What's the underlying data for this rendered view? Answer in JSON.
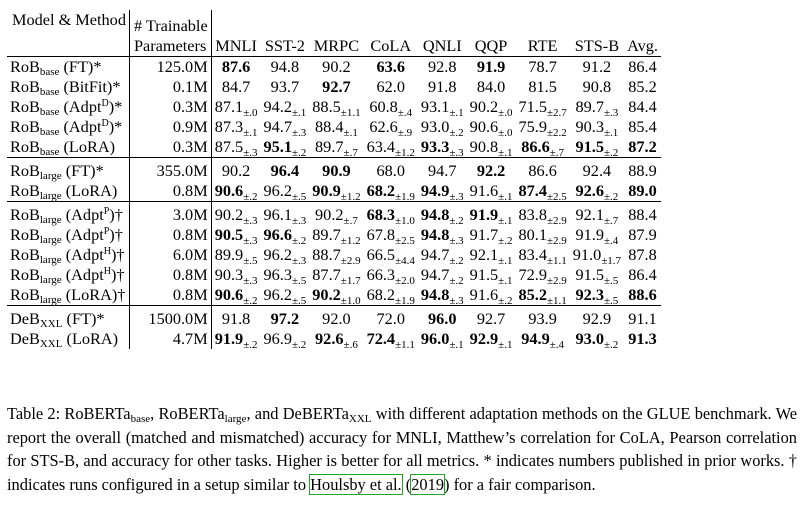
{
  "table": {
    "header": {
      "model_method": "Model & Method",
      "params_line1": "# Trainable",
      "params_line2": "Parameters",
      "tasks": [
        "MNLI",
        "SST-2",
        "MRPC",
        "CoLA",
        "QNLI",
        "QQP",
        "RTE",
        "STS-B",
        "Avg."
      ]
    },
    "groups": [
      {
        "rows": [
          {
            "base": "RoB",
            "sub": "base",
            "method": "(FT)",
            "sup": "",
            "mark": "*",
            "params": "125.0M",
            "cells": [
              {
                "v": "87.6",
                "b": true,
                "pm": ""
              },
              {
                "v": "94.8",
                "b": false,
                "pm": ""
              },
              {
                "v": "90.2",
                "b": false,
                "pm": ""
              },
              {
                "v": "63.6",
                "b": true,
                "pm": ""
              },
              {
                "v": "92.8",
                "b": false,
                "pm": ""
              },
              {
                "v": "91.9",
                "b": true,
                "pm": ""
              },
              {
                "v": "78.7",
                "b": false,
                "pm": ""
              },
              {
                "v": "91.2",
                "b": false,
                "pm": ""
              },
              {
                "v": "86.4",
                "b": false,
                "pm": ""
              }
            ]
          },
          {
            "base": "RoB",
            "sub": "base",
            "method": "(BitFit)",
            "sup": "",
            "mark": "*",
            "params": "0.1M",
            "cells": [
              {
                "v": "84.7",
                "b": false,
                "pm": ""
              },
              {
                "v": "93.7",
                "b": false,
                "pm": ""
              },
              {
                "v": "92.7",
                "b": true,
                "pm": ""
              },
              {
                "v": "62.0",
                "b": false,
                "pm": ""
              },
              {
                "v": "91.8",
                "b": false,
                "pm": ""
              },
              {
                "v": "84.0",
                "b": false,
                "pm": ""
              },
              {
                "v": "81.5",
                "b": false,
                "pm": ""
              },
              {
                "v": "90.8",
                "b": false,
                "pm": ""
              },
              {
                "v": "85.2",
                "b": false,
                "pm": ""
              }
            ]
          },
          {
            "base": "RoB",
            "sub": "base",
            "method": "(Adpt",
            "sup": "D",
            "mark": ")*",
            "params": "0.3M",
            "cells": [
              {
                "v": "87.1",
                "b": false,
                "pm": "±.0"
              },
              {
                "v": "94.2",
                "b": false,
                "pm": "±.1"
              },
              {
                "v": "88.5",
                "b": false,
                "pm": "±1.1"
              },
              {
                "v": "60.8",
                "b": false,
                "pm": "±.4"
              },
              {
                "v": "93.1",
                "b": false,
                "pm": "±.1"
              },
              {
                "v": "90.2",
                "b": false,
                "pm": "±.0"
              },
              {
                "v": "71.5",
                "b": false,
                "pm": "±2.7"
              },
              {
                "v": "89.7",
                "b": false,
                "pm": "±.3"
              },
              {
                "v": "84.4",
                "b": false,
                "pm": ""
              }
            ]
          },
          {
            "base": "RoB",
            "sub": "base",
            "method": "(Adpt",
            "sup": "D",
            "mark": ")*",
            "params": "0.9M",
            "cells": [
              {
                "v": "87.3",
                "b": false,
                "pm": "±.1"
              },
              {
                "v": "94.7",
                "b": false,
                "pm": "±.3"
              },
              {
                "v": "88.4",
                "b": false,
                "pm": "±.1"
              },
              {
                "v": "62.6",
                "b": false,
                "pm": "±.9"
              },
              {
                "v": "93.0",
                "b": false,
                "pm": "±.2"
              },
              {
                "v": "90.6",
                "b": false,
                "pm": "±.0"
              },
              {
                "v": "75.9",
                "b": false,
                "pm": "±2.2"
              },
              {
                "v": "90.3",
                "b": false,
                "pm": "±.1"
              },
              {
                "v": "85.4",
                "b": false,
                "pm": ""
              }
            ]
          },
          {
            "base": "RoB",
            "sub": "base",
            "method": "(LoRA)",
            "sup": "",
            "mark": "",
            "params": "0.3M",
            "cells": [
              {
                "v": "87.5",
                "b": false,
                "pm": "±.3"
              },
              {
                "v": "95.1",
                "b": true,
                "pm": "±.2"
              },
              {
                "v": "89.7",
                "b": false,
                "pm": "±.7"
              },
              {
                "v": "63.4",
                "b": false,
                "pm": "±1.2"
              },
              {
                "v": "93.3",
                "b": true,
                "pm": "±.3"
              },
              {
                "v": "90.8",
                "b": false,
                "pm": "±.1"
              },
              {
                "v": "86.6",
                "b": true,
                "pm": "±.7"
              },
              {
                "v": "91.5",
                "b": true,
                "pm": "±.2"
              },
              {
                "v": "87.2",
                "b": true,
                "pm": ""
              }
            ]
          }
        ]
      },
      {
        "rows": [
          {
            "base": "RoB",
            "sub": "large",
            "method": "(FT)",
            "sup": "",
            "mark": "*",
            "params": "355.0M",
            "cells": [
              {
                "v": "90.2",
                "b": false,
                "pm": ""
              },
              {
                "v": "96.4",
                "b": true,
                "pm": ""
              },
              {
                "v": "90.9",
                "b": true,
                "pm": ""
              },
              {
                "v": "68.0",
                "b": false,
                "pm": ""
              },
              {
                "v": "94.7",
                "b": false,
                "pm": ""
              },
              {
                "v": "92.2",
                "b": true,
                "pm": ""
              },
              {
                "v": "86.6",
                "b": false,
                "pm": ""
              },
              {
                "v": "92.4",
                "b": false,
                "pm": ""
              },
              {
                "v": "88.9",
                "b": false,
                "pm": ""
              }
            ]
          },
          {
            "base": "RoB",
            "sub": "large",
            "method": "(LoRA)",
            "sup": "",
            "mark": "",
            "params": "0.8M",
            "cells": [
              {
                "v": "90.6",
                "b": true,
                "pm": "±.2"
              },
              {
                "v": "96.2",
                "b": false,
                "pm": "±.5"
              },
              {
                "v": "90.9",
                "b": true,
                "pm": "±1.2"
              },
              {
                "v": "68.2",
                "b": true,
                "pm": "±1.9"
              },
              {
                "v": "94.9",
                "b": true,
                "pm": "±.3"
              },
              {
                "v": "91.6",
                "b": false,
                "pm": "±.1"
              },
              {
                "v": "87.4",
                "b": true,
                "pm": "±2.5"
              },
              {
                "v": "92.6",
                "b": true,
                "pm": "±.2"
              },
              {
                "v": "89.0",
                "b": true,
                "pm": ""
              }
            ]
          }
        ]
      },
      {
        "rows": [
          {
            "base": "RoB",
            "sub": "large",
            "method": "(Adpt",
            "sup": "P",
            "mark": ")†",
            "params": "3.0M",
            "cells": [
              {
                "v": "90.2",
                "b": false,
                "pm": "±.3"
              },
              {
                "v": "96.1",
                "b": false,
                "pm": "±.3"
              },
              {
                "v": "90.2",
                "b": false,
                "pm": "±.7"
              },
              {
                "v": "68.3",
                "b": true,
                "pm": "±1.0"
              },
              {
                "v": "94.8",
                "b": true,
                "pm": "±.2"
              },
              {
                "v": "91.9",
                "b": true,
                "pm": "±.1"
              },
              {
                "v": "83.8",
                "b": false,
                "pm": "±2.9"
              },
              {
                "v": "92.1",
                "b": false,
                "pm": "±.7"
              },
              {
                "v": "88.4",
                "b": false,
                "pm": ""
              }
            ]
          },
          {
            "base": "RoB",
            "sub": "large",
            "method": "(Adpt",
            "sup": "P",
            "mark": ")†",
            "params": "0.8M",
            "cells": [
              {
                "v": "90.5",
                "b": true,
                "pm": "±.3"
              },
              {
                "v": "96.6",
                "b": true,
                "pm": "±.2"
              },
              {
                "v": "89.7",
                "b": false,
                "pm": "±1.2"
              },
              {
                "v": "67.8",
                "b": false,
                "pm": "±2.5"
              },
              {
                "v": "94.8",
                "b": true,
                "pm": "±.3"
              },
              {
                "v": "91.7",
                "b": false,
                "pm": "±.2"
              },
              {
                "v": "80.1",
                "b": false,
                "pm": "±2.9"
              },
              {
                "v": "91.9",
                "b": false,
                "pm": "±.4"
              },
              {
                "v": "87.9",
                "b": false,
                "pm": ""
              }
            ]
          },
          {
            "base": "RoB",
            "sub": "large",
            "method": "(Adpt",
            "sup": "H",
            "mark": ")†",
            "params": "6.0M",
            "cells": [
              {
                "v": "89.9",
                "b": false,
                "pm": "±.5"
              },
              {
                "v": "96.2",
                "b": false,
                "pm": "±.3"
              },
              {
                "v": "88.7",
                "b": false,
                "pm": "±2.9"
              },
              {
                "v": "66.5",
                "b": false,
                "pm": "±4.4"
              },
              {
                "v": "94.7",
                "b": false,
                "pm": "±.2"
              },
              {
                "v": "92.1",
                "b": false,
                "pm": "±.1"
              },
              {
                "v": "83.4",
                "b": false,
                "pm": "±1.1"
              },
              {
                "v": "91.0",
                "b": false,
                "pm": "±1.7"
              },
              {
                "v": "87.8",
                "b": false,
                "pm": ""
              }
            ]
          },
          {
            "base": "RoB",
            "sub": "large",
            "method": "(Adpt",
            "sup": "H",
            "mark": ")†",
            "params": "0.8M",
            "cells": [
              {
                "v": "90.3",
                "b": false,
                "pm": "±.3"
              },
              {
                "v": "96.3",
                "b": false,
                "pm": "±.5"
              },
              {
                "v": "87.7",
                "b": false,
                "pm": "±1.7"
              },
              {
                "v": "66.3",
                "b": false,
                "pm": "±2.0"
              },
              {
                "v": "94.7",
                "b": false,
                "pm": "±.2"
              },
              {
                "v": "91.5",
                "b": false,
                "pm": "±.1"
              },
              {
                "v": "72.9",
                "b": false,
                "pm": "±2.9"
              },
              {
                "v": "91.5",
                "b": false,
                "pm": "±.5"
              },
              {
                "v": "86.4",
                "b": false,
                "pm": ""
              }
            ]
          },
          {
            "base": "RoB",
            "sub": "large",
            "method": "(LoRA)",
            "sup": "",
            "mark": "†",
            "params": "0.8M",
            "cells": [
              {
                "v": "90.6",
                "b": true,
                "pm": "±.2"
              },
              {
                "v": "96.2",
                "b": false,
                "pm": "±.5"
              },
              {
                "v": "90.2",
                "b": true,
                "pm": "±1.0"
              },
              {
                "v": "68.2",
                "b": false,
                "pm": "±1.9"
              },
              {
                "v": "94.8",
                "b": true,
                "pm": "±.3"
              },
              {
                "v": "91.6",
                "b": false,
                "pm": "±.2"
              },
              {
                "v": "85.2",
                "b": true,
                "pm": "±1.1"
              },
              {
                "v": "92.3",
                "b": true,
                "pm": "±.5"
              },
              {
                "v": "88.6",
                "b": true,
                "pm": ""
              }
            ]
          }
        ]
      },
      {
        "rows": [
          {
            "base": "DeB",
            "sub": "XXL",
            "method": "(FT)",
            "sup": "",
            "mark": "*",
            "params": "1500.0M",
            "cells": [
              {
                "v": "91.8",
                "b": false,
                "pm": ""
              },
              {
                "v": "97.2",
                "b": true,
                "pm": ""
              },
              {
                "v": "92.0",
                "b": false,
                "pm": ""
              },
              {
                "v": "72.0",
                "b": false,
                "pm": ""
              },
              {
                "v": "96.0",
                "b": true,
                "pm": ""
              },
              {
                "v": "92.7",
                "b": false,
                "pm": ""
              },
              {
                "v": "93.9",
                "b": false,
                "pm": ""
              },
              {
                "v": "92.9",
                "b": false,
                "pm": ""
              },
              {
                "v": "91.1",
                "b": false,
                "pm": ""
              }
            ]
          },
          {
            "base": "DeB",
            "sub": "XXL",
            "method": "(LoRA)",
            "sup": "",
            "mark": "",
            "params": "4.7M",
            "cells": [
              {
                "v": "91.9",
                "b": true,
                "pm": "±.2"
              },
              {
                "v": "96.9",
                "b": false,
                "pm": "±.2"
              },
              {
                "v": "92.6",
                "b": true,
                "pm": "±.6"
              },
              {
                "v": "72.4",
                "b": true,
                "pm": "±1.1"
              },
              {
                "v": "96.0",
                "b": true,
                "pm": "±.1"
              },
              {
                "v": "92.9",
                "b": true,
                "pm": "±.1"
              },
              {
                "v": "94.9",
                "b": true,
                "pm": "±.4"
              },
              {
                "v": "93.0",
                "b": true,
                "pm": "±.2"
              },
              {
                "v": "91.3",
                "b": true,
                "pm": ""
              }
            ]
          }
        ]
      }
    ]
  },
  "caption": {
    "p1": "Table 2: RoBERTa",
    "s1": "base",
    "p2": ", RoBERTa",
    "s2": "large",
    "p3": ", and DeBERTa",
    "s3": "XXL",
    "p4": " with different adaptation methods on the GLUE benchmark. We report the overall (matched and mismatched) accuracy for MNLI, Matthew’s correlation for CoLA, Pearson correlation for STS-B, and accuracy for other tasks. Higher is better for all metrics. * indicates numbers published in prior works. † indicates runs configured in a setup similar to ",
    "cite_author": "Houlsby et al.",
    "cite_open": " (",
    "cite_year": "2019",
    "cite_close": ")",
    "p5": " for a fair comparison."
  }
}
